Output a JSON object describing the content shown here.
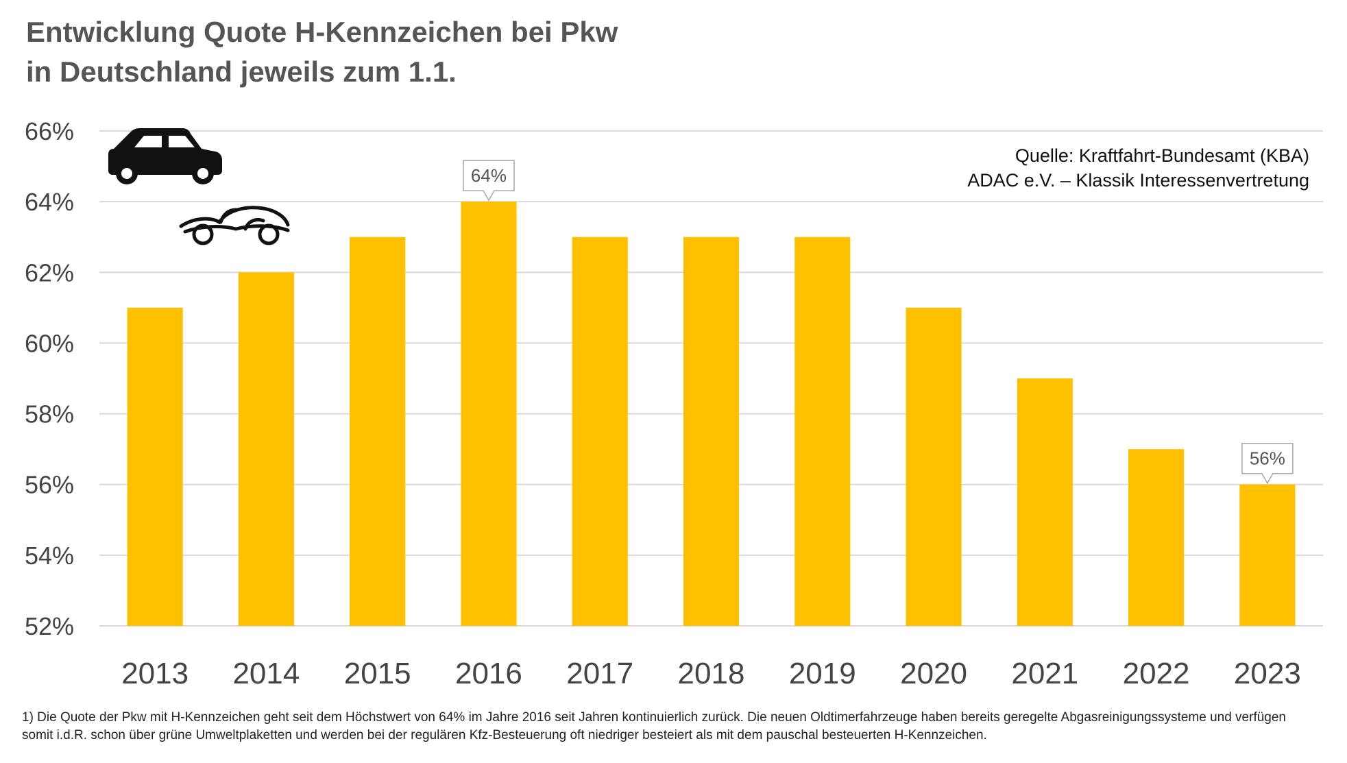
{
  "title": {
    "line1": "Entwicklung Quote H-Kennzeichen bei Pkw",
    "line2": "in Deutschland jeweils zum 1.1."
  },
  "source": {
    "line1": "Quelle: Kraftfahrt-Bundesamt (KBA)",
    "line2": "ADAC e.V. – Klassik Interessenvertretung"
  },
  "icons": {
    "top": "car-icon",
    "bottom": "vintage-car-icon"
  },
  "colors": {
    "bar": "#FFC000",
    "grid": "#D9D9D9",
    "title": "#555555"
  },
  "footnote": "1)  Die Quote der Pkw mit H-Kennzeichen geht seit dem Höchstwert von 64% im Jahre 2016 seit Jahren kontinuierlich zurück. Die neuen Oldtimerfahrzeuge haben bereits geregelte Abgasreinigungssysteme und verfügen somit i.d.R. schon über grüne Umweltplaketten und werden bei der regulären Kfz-Besteuerung oft niedriger besteiert als mit dem pauschal besteuerten H-Kennzeichen.",
  "chart_data": {
    "type": "bar",
    "title": "Entwicklung Quote H-Kennzeichen bei Pkw in Deutschland jeweils zum 1.1.",
    "categories": [
      "2013",
      "2014",
      "2015",
      "2016",
      "2017",
      "2018",
      "2019",
      "2020",
      "2021",
      "2022",
      "2023"
    ],
    "values": [
      61,
      62,
      63,
      64,
      63,
      63,
      63,
      61,
      59,
      57,
      56
    ],
    "unit": "%",
    "ylim": [
      52,
      66
    ],
    "yticks": [
      52,
      54,
      56,
      58,
      60,
      62,
      64,
      66
    ],
    "grid": true,
    "xlabel": "",
    "ylabel": "",
    "data_labels": [
      {
        "category": "2016",
        "text": "64%"
      },
      {
        "category": "2023",
        "text": "56%"
      }
    ]
  }
}
